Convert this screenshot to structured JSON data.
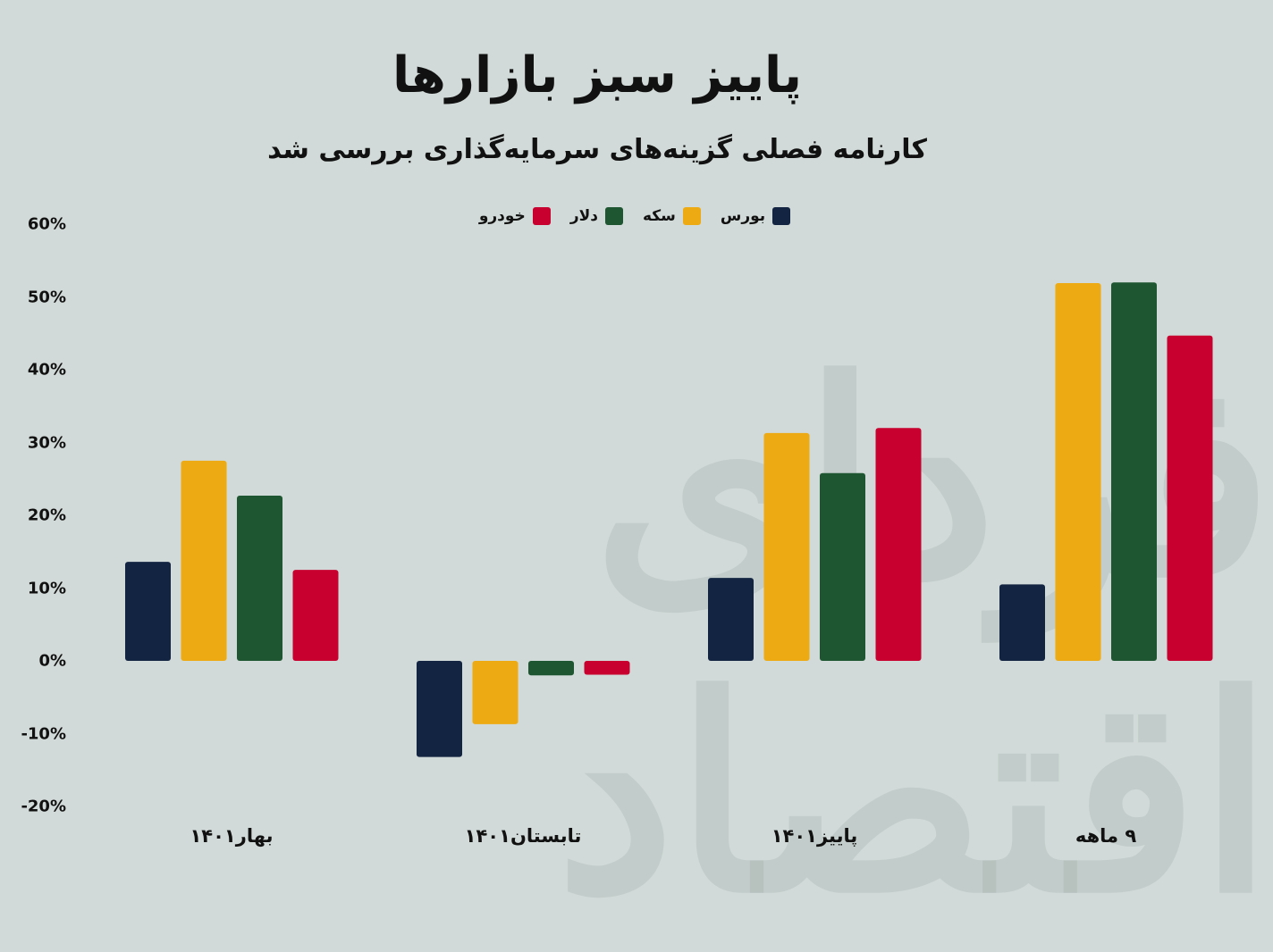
{
  "header": {
    "title": "پاییز سبز بازارها",
    "subtitle": "کارنامه فصلی گزینه‌های سرمایه‌گذاری بررسی شد"
  },
  "watermark": "فردای اقتصاد",
  "chart_data": {
    "type": "bar",
    "title": "پاییز سبز بازارها",
    "subtitle": "کارنامه فصلی گزینه‌های سرمایه‌گذاری بررسی شد",
    "categories": [
      "بهار۱۴۰۱",
      "تابستان۱۴۰۱",
      "پاییز۱۴۰۱",
      "۹ ماهه"
    ],
    "series": [
      {
        "name": "بورس",
        "color": "#132442",
        "values": [
          13.6,
          -13.2,
          11.4,
          10.5
        ]
      },
      {
        "name": "سکه",
        "color": "#eeaa12",
        "values": [
          27.5,
          -8.7,
          31.3,
          51.9
        ]
      },
      {
        "name": "دلار",
        "color": "#1e5631",
        "values": [
          22.7,
          -2.0,
          25.8,
          52.0
        ]
      },
      {
        "name": "خودرو",
        "color": "#c8002f",
        "values": [
          12.5,
          -1.9,
          32.0,
          44.7
        ]
      }
    ],
    "ylim": [
      -20,
      60
    ],
    "yticks": [
      "60%",
      "50%",
      "40%",
      "30%",
      "20%",
      "10%",
      "0%",
      "-10%",
      "-20%"
    ],
    "ytick_values": [
      60,
      50,
      40,
      30,
      20,
      10,
      0,
      -10,
      -20
    ],
    "legend": "top-center",
    "grid": false
  }
}
